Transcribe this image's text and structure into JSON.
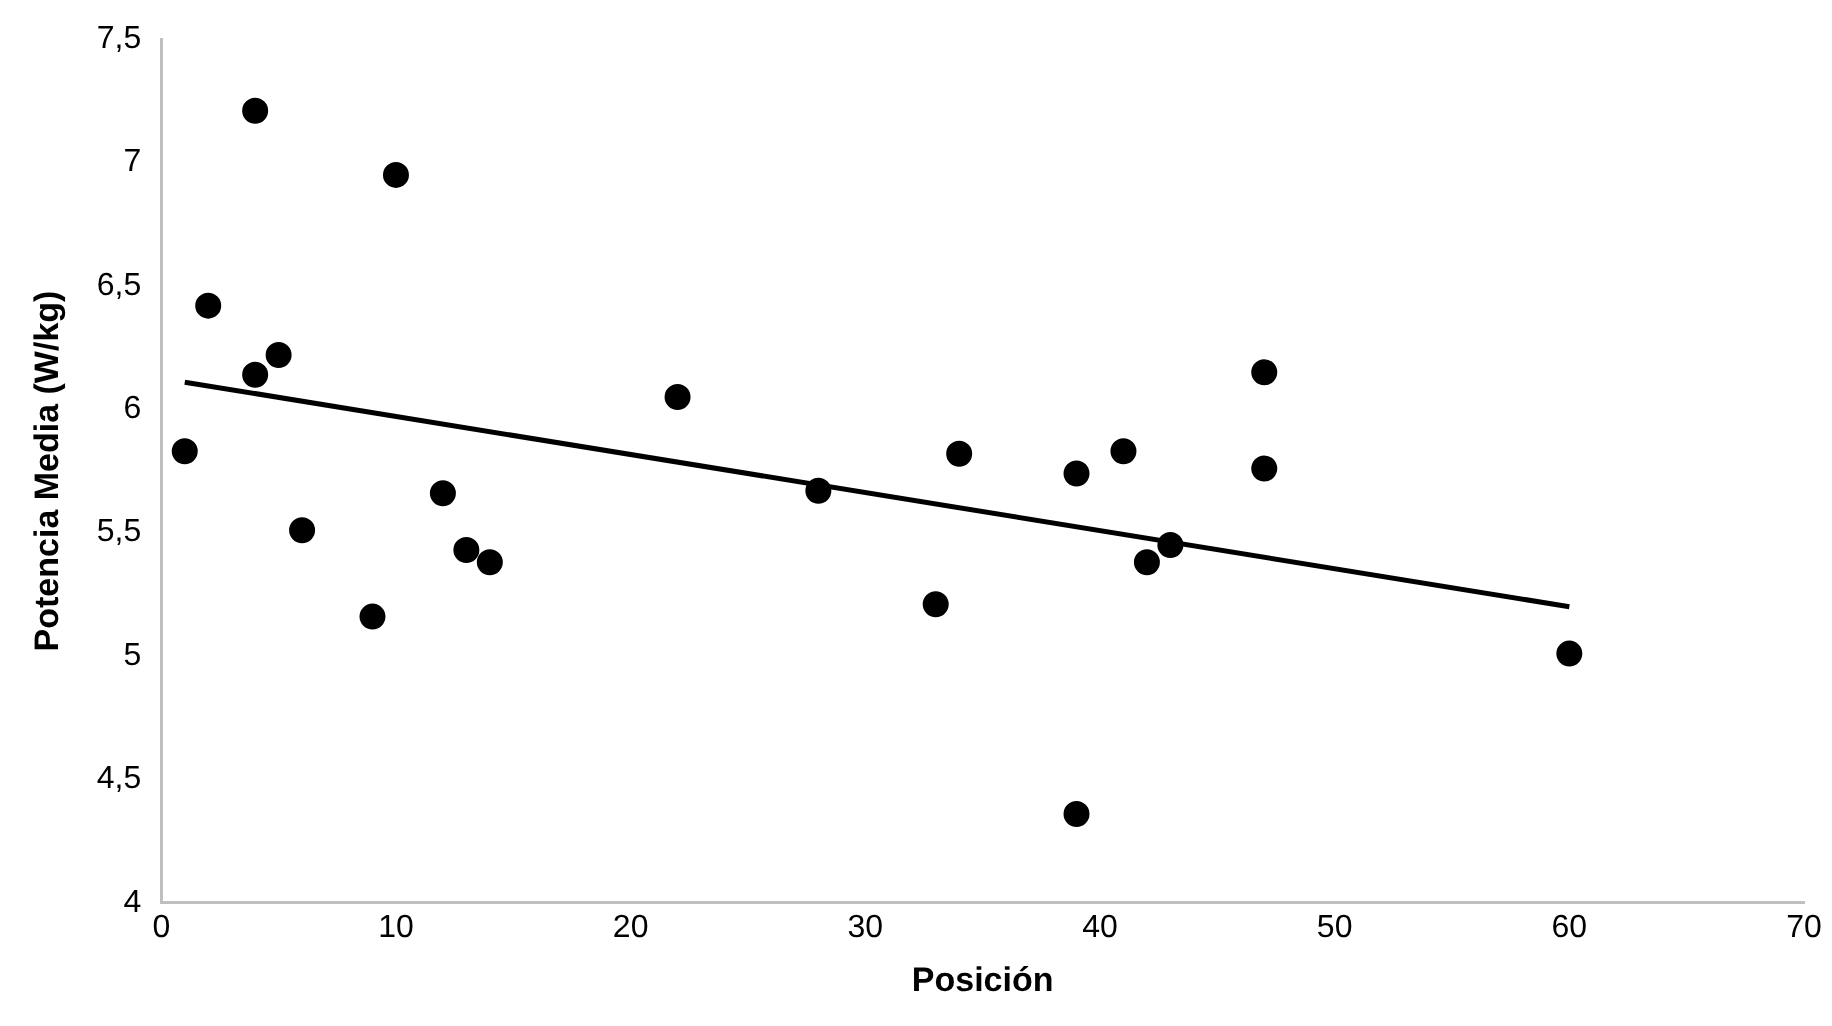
{
  "chart_data": {
    "type": "scatter",
    "xlabel": "Posición",
    "ylabel": "Potencia Media (W/kg)",
    "xlim": [
      0,
      70
    ],
    "xticks": [
      0,
      10,
      20,
      30,
      40,
      50,
      60,
      70
    ],
    "ylim": [
      4,
      7.5
    ],
    "yticks": [
      4,
      {
        "value": 4.5,
        "label": "4,5"
      },
      5,
      {
        "value": 5.5,
        "label": "5,5"
      },
      6,
      {
        "value": 6.5,
        "label": "6,5"
      },
      7,
      {
        "value": 7.5,
        "label": "7,5"
      }
    ],
    "grid": false,
    "legend": false,
    "marker": "circle",
    "series": [
      {
        "color": "#000000",
        "x": [
          4,
          10,
          2,
          5,
          4,
          1,
          22,
          12,
          6,
          13,
          14,
          9,
          28,
          34,
          33,
          39,
          39,
          41,
          43,
          42,
          47,
          47,
          60
        ],
        "values": [
          7.21,
          6.95,
          6.42,
          6.22,
          6.14,
          5.83,
          6.05,
          5.66,
          5.51,
          5.43,
          5.38,
          5.16,
          5.67,
          5.82,
          5.21,
          5.74,
          4.36,
          5.83,
          5.45,
          5.38,
          6.15,
          5.76,
          5.01
        ]
      },
      {
        "type": "line",
        "color": "#000000",
        "marker": "none",
        "line_style": "solid",
        "x": [
          1,
          60
        ],
        "values": [
          6.11,
          5.2
        ]
      }
    ]
  }
}
